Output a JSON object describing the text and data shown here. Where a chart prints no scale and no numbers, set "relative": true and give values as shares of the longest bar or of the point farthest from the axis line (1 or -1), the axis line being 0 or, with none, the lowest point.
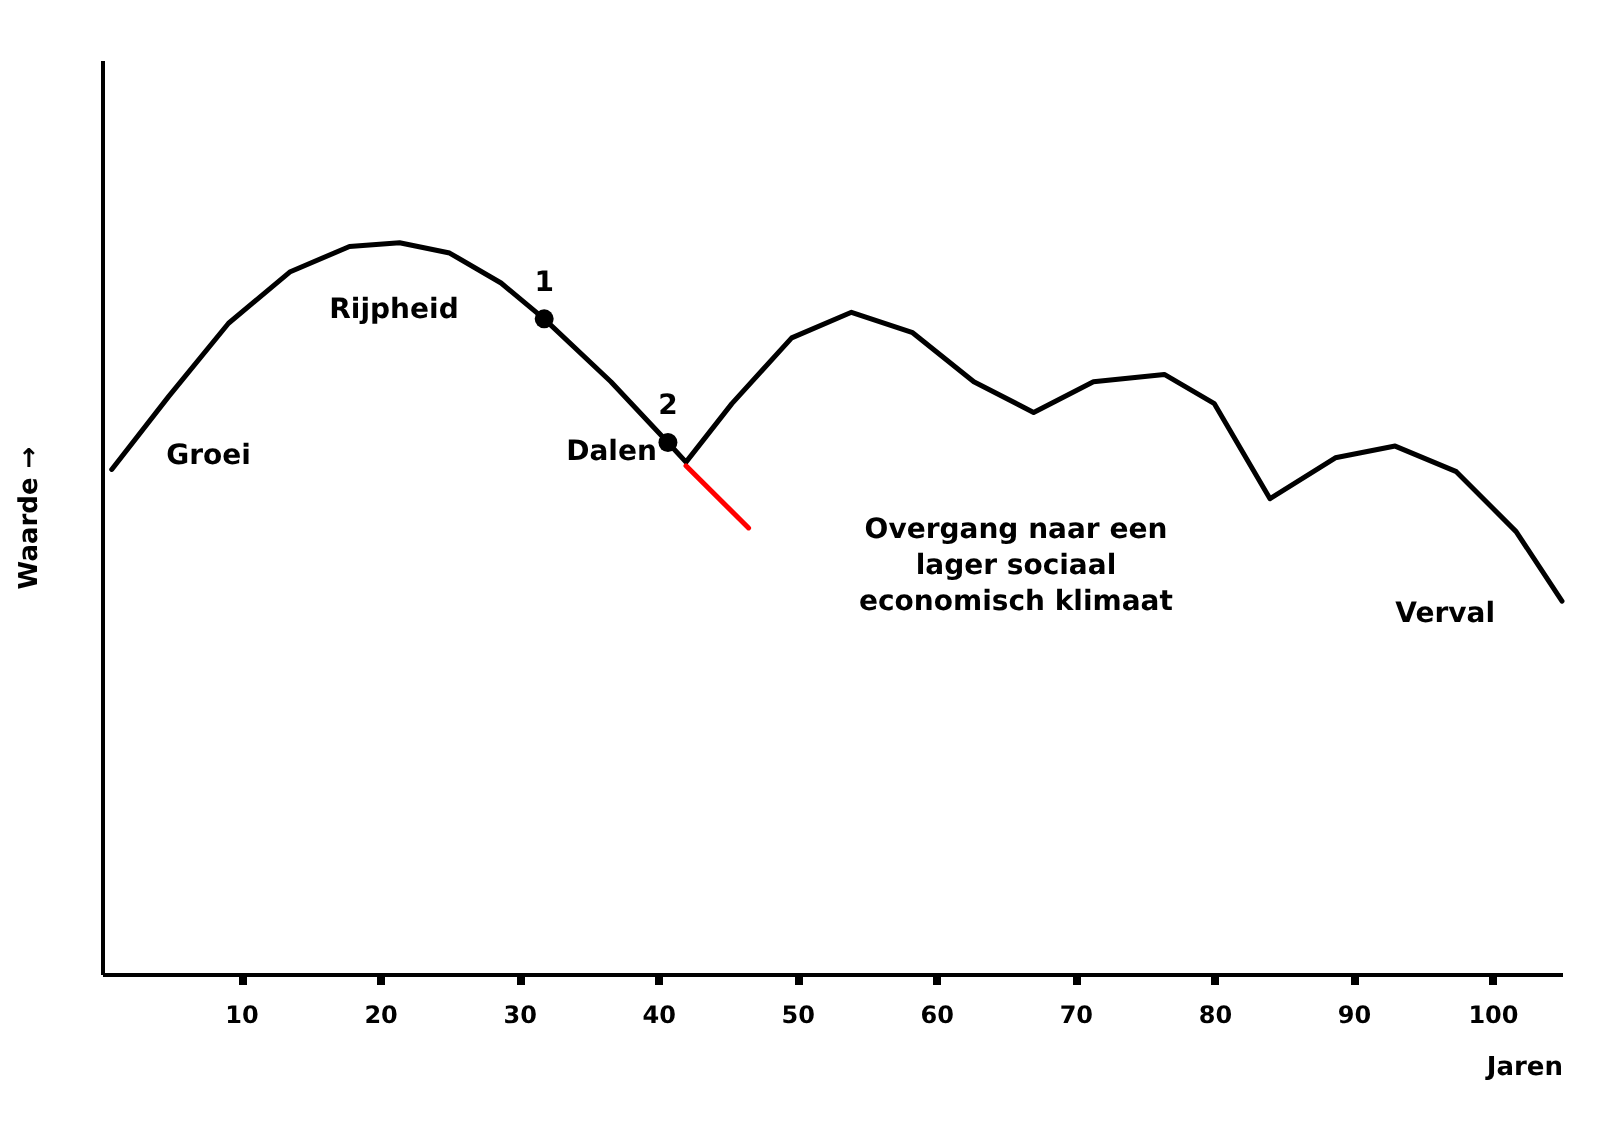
{
  "chart_data": {
    "type": "line",
    "relative": true,
    "xlabel": "Jaren",
    "ylabel": "Waarde →",
    "xlim": [
      0,
      105
    ],
    "xticks": [
      10,
      20,
      30,
      40,
      50,
      60,
      70,
      80,
      90,
      100
    ],
    "marker": "none",
    "line_style": "solid",
    "series": [
      {
        "color": "#000000",
        "x": [
          0.7,
          4.8,
          9.1,
          13.5,
          17.8,
          21.4,
          25,
          28.7,
          31.8,
          36.6,
          40.7,
          42,
          45.3,
          49.6,
          53.9,
          58.3,
          62.7,
          67,
          71.3,
          76.4,
          80,
          84,
          88.7,
          93,
          97.4,
          101.7,
          105
        ],
        "values": [
          0.69,
          0.79,
          0.89,
          0.96,
          0.995,
          1,
          0.986,
          0.945,
          0.896,
          0.81,
          0.727,
          0.7,
          0.78,
          0.87,
          0.905,
          0.877,
          0.81,
          0.768,
          0.81,
          0.82,
          0.78,
          0.65,
          0.706,
          0.722,
          0.687,
          0.605,
          0.51
        ]
      },
      {
        "color": "#ff0000",
        "x": [
          42,
          46.5
        ],
        "values": [
          0.695,
          0.61
        ]
      },
      {
        "type": "scatter",
        "marker": "circle",
        "color": "#000000",
        "x": [
          31.8,
          40.7
        ],
        "values": [
          0.896,
          0.727
        ]
      }
    ],
    "annotations": [
      "Groei",
      "Rijpheid",
      {
        "text": "1",
        "x": 31.8,
        "y": 0.896
      },
      {
        "text": "2",
        "x": 40.7,
        "y": 0.727
      },
      "Dalen",
      "Overgang naar een\nlager sociaal\neconomisch klimaat",
      "Verval"
    ]
  }
}
